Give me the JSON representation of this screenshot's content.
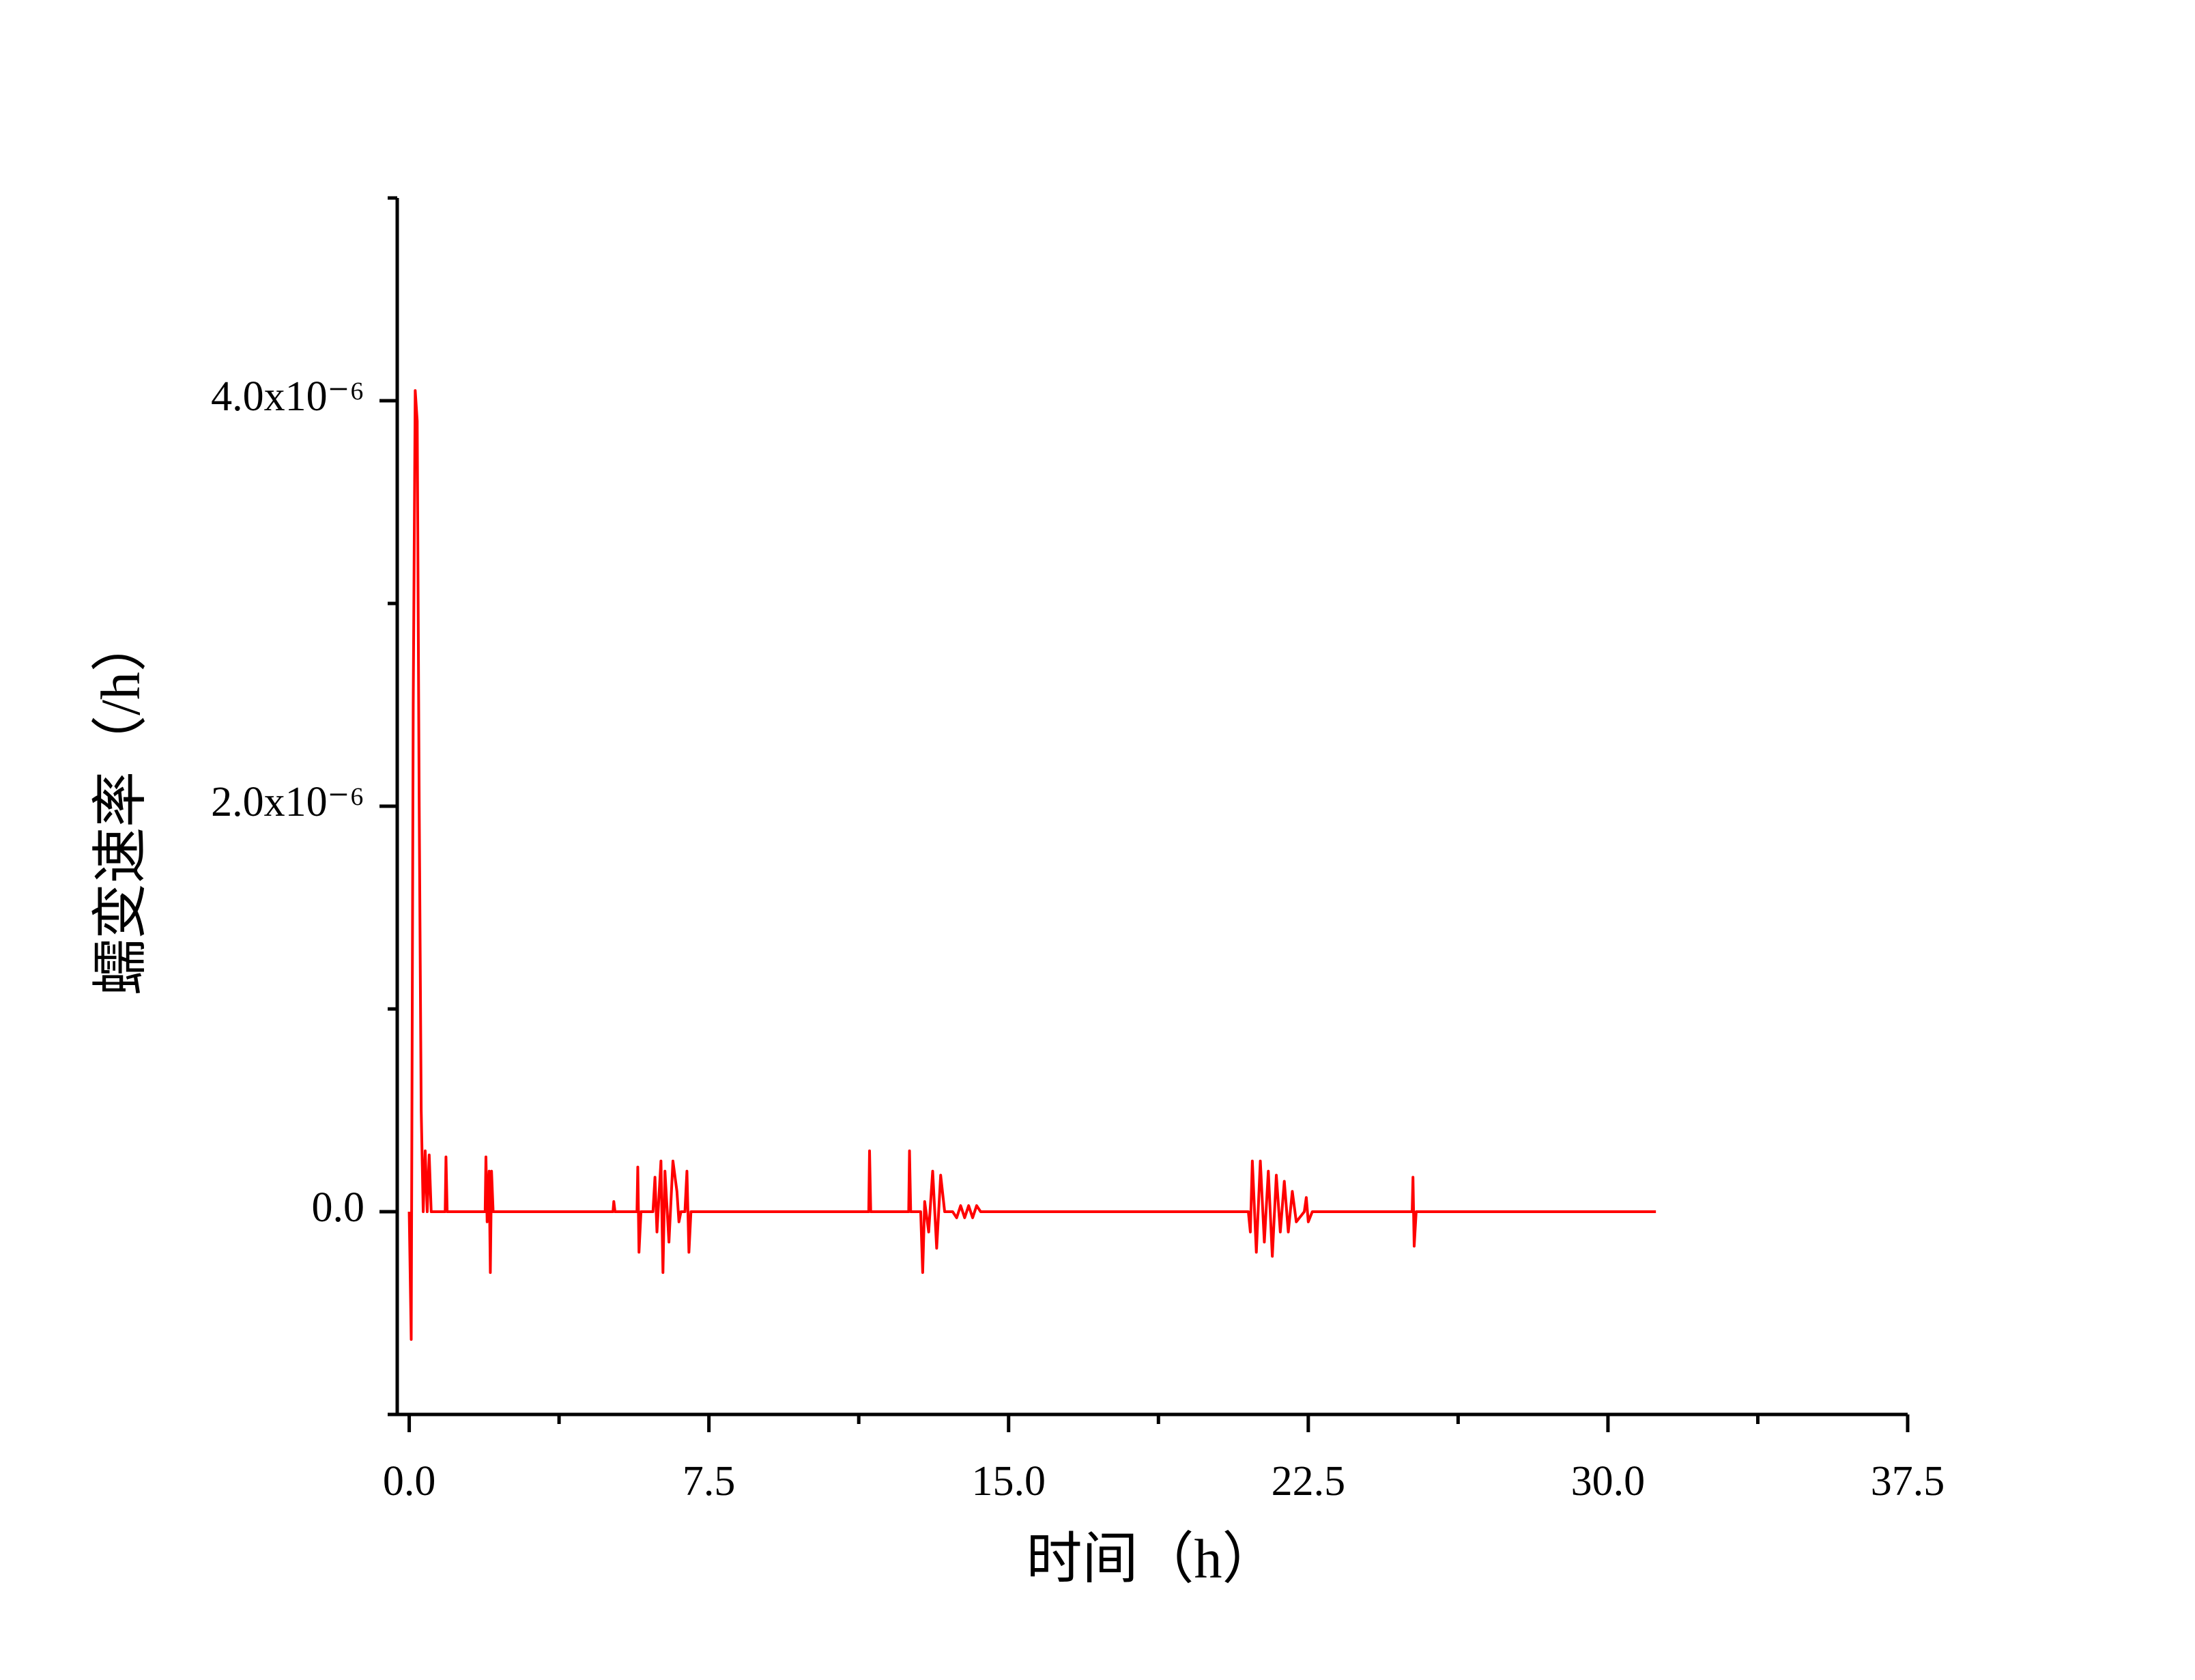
{
  "chart_data": {
    "type": "line",
    "x_label": "时间（h）",
    "y_label": "蠕变速率（/h）",
    "xlim": [
      -0.3,
      37.5
    ],
    "xticks": [
      {
        "value": 0,
        "label": "0.0"
      },
      7.5,
      {
        "value": 15,
        "label": "15.0"
      },
      22.5,
      {
        "value": 30,
        "label": "30.0"
      },
      37.5
    ],
    "xminorticks": [
      3.75,
      11.25,
      18.75,
      26.25,
      33.75
    ],
    "ylim": [
      -1e-06,
      5e-06
    ],
    "yticks": [
      {
        "value": 0,
        "label": "0.0"
      },
      {
        "value": 2e-06,
        "label": "2.0x10⁻⁶"
      },
      {
        "value": 4e-06,
        "label": "4.0x10⁻⁶"
      }
    ],
    "yminorticks": [
      -1e-06,
      1e-06,
      3e-06,
      5e-06
    ],
    "series": [
      {
        "color": "#ff0000",
        "x": [
          0,
          0.05,
          0.1,
          0.15,
          0.2,
          0.25,
          0.3,
          0.35,
          0.4,
          0.45,
          0.5,
          0.55,
          0.9,
          0.92,
          0.95,
          1.9,
          1.92,
          1.95,
          2.0,
          2.03,
          2.06,
          2.1,
          5.1,
          5.12,
          5.15,
          5.7,
          5.72,
          5.75,
          5.8,
          6.1,
          6.15,
          6.2,
          6.3,
          6.35,
          6.4,
          6.5,
          6.6,
          6.7,
          6.75,
          6.8,
          6.9,
          6.95,
          7.0,
          7.05,
          11.5,
          11.52,
          11.55,
          12.5,
          12.52,
          12.55,
          12.8,
          12.85,
          12.9,
          13.0,
          13.1,
          13.2,
          13.3,
          13.4,
          13.6,
          13.7,
          13.8,
          13.9,
          14.0,
          14.1,
          14.2,
          14.3,
          21.0,
          21.05,
          21.1,
          21.2,
          21.3,
          21.4,
          21.5,
          21.6,
          21.7,
          21.8,
          21.9,
          22.0,
          22.1,
          22.2,
          22.4,
          22.45,
          22.5,
          22.6,
          25.1,
          25.12,
          25.15,
          25.2,
          31.2
        ],
        "values": [
          0,
          -6.3e-07,
          2.5e-06,
          4.05e-06,
          3.9e-06,
          2e-06,
          5e-07,
          0,
          3e-07,
          0,
          2.8e-07,
          0,
          0,
          2.7e-07,
          0,
          0,
          2.7e-07,
          -5e-08,
          2e-07,
          -3e-07,
          2e-07,
          0,
          0,
          5e-08,
          0,
          0,
          2.2e-07,
          -2e-07,
          0,
          0,
          1.7e-07,
          -1e-07,
          2.5e-07,
          -3e-07,
          2e-07,
          -1.5e-07,
          2.5e-07,
          1e-07,
          -5e-08,
          0,
          0,
          2e-07,
          -2e-07,
          0,
          0,
          3e-07,
          0,
          0,
          3e-07,
          0,
          0,
          -3e-07,
          5e-08,
          -1e-07,
          2e-07,
          -1.8e-07,
          1.8e-07,
          0,
          0,
          -3e-08,
          3e-08,
          -3e-08,
          3e-08,
          -3e-08,
          3e-08,
          0,
          0,
          -1e-07,
          2.5e-07,
          -2e-07,
          2.5e-07,
          -1.5e-07,
          2e-07,
          -2.2e-07,
          1.8e-07,
          -1e-07,
          1.5e-07,
          -1e-07,
          1e-07,
          -5e-08,
          0,
          7e-08,
          -5e-08,
          0,
          0,
          1.7e-07,
          -1.7e-07,
          0,
          0
        ]
      }
    ]
  }
}
